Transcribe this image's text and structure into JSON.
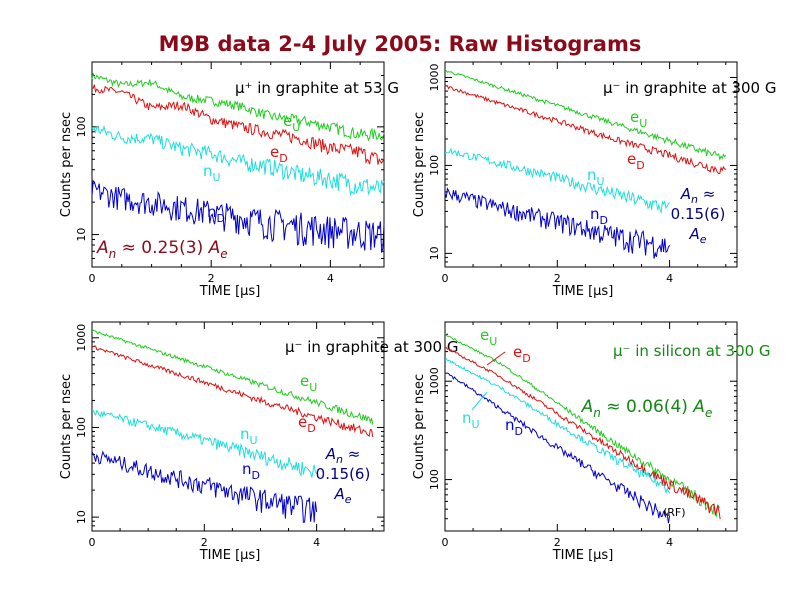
{
  "title": "M9B data 2-4 July 2005:  Raw Histograms",
  "colors": {
    "title": "#8b0a1a",
    "eU": "#22cc22",
    "eD": "#dd1111",
    "nU": "#22dddd",
    "nD": "#0000cc",
    "darkred": "#8b0a1a",
    "navy": "#000088",
    "green_title": "#118811"
  },
  "chart_data": [
    {
      "type": "line",
      "subtitle": "μ⁺ in graphite at 53 G",
      "xlabel": "TIME [μs]",
      "ylabel": "Counts per nsec",
      "x_ticks": [
        "0",
        "2",
        "4"
      ],
      "y_ticks": [
        "10",
        "100"
      ],
      "xlim": [
        0,
        4.9
      ],
      "ylog": [
        5,
        400
      ],
      "grid": false,
      "annotation": "An ≈ 0.25(3) Ae",
      "series": [
        {
          "name": "eU",
          "x": [
            0,
            0.5,
            1.0,
            1.5,
            2.0,
            2.5,
            3.0,
            3.5,
            4.0,
            4.5,
            4.9
          ],
          "values": [
            300,
            245,
            260,
            190,
            175,
            155,
            125,
            115,
            100,
            85,
            85
          ]
        },
        {
          "name": "eD",
          "x": [
            0,
            0.5,
            1.0,
            1.5,
            2.0,
            2.5,
            3.0,
            3.5,
            4.0,
            4.5,
            4.9
          ],
          "values": [
            230,
            210,
            150,
            160,
            118,
            100,
            88,
            78,
            64,
            58,
            47
          ]
        },
        {
          "name": "nU",
          "x": [
            0,
            0.5,
            1.0,
            1.5,
            2.0,
            2.5,
            3.0,
            3.5,
            4.0,
            4.5,
            4.9
          ],
          "values": [
            98,
            80,
            78,
            63,
            57,
            47,
            43,
            36,
            33,
            29,
            26
          ]
        },
        {
          "name": "nD",
          "x": [
            0,
            0.5,
            1.0,
            1.5,
            2.0,
            2.5,
            3.0,
            3.5,
            4.0,
            4.5,
            4.9
          ],
          "values": [
            26,
            22,
            20,
            18,
            16,
            14.5,
            13,
            12,
            11.2,
            10.5,
            10
          ]
        }
      ]
    },
    {
      "type": "line",
      "subtitle": "μ⁻ in graphite at 300 G",
      "xlabel": "TIME [μs]",
      "ylabel": "Counts per nsec",
      "x_ticks": [
        "0",
        "2",
        "4"
      ],
      "y_ticks": [
        "10",
        "100",
        "1000"
      ],
      "xlim": [
        0,
        5.2
      ],
      "ylog": [
        7,
        1500
      ],
      "grid": false,
      "annotation": "An ≈ 0.15(6) Ae",
      "series": [
        {
          "name": "eU",
          "x": [
            0,
            1,
            2,
            3,
            4,
            5
          ],
          "values": [
            1200,
            760,
            480,
            300,
            190,
            120
          ]
        },
        {
          "name": "eD",
          "x": [
            0,
            1,
            2,
            3,
            4,
            5
          ],
          "values": [
            800,
            500,
            320,
            200,
            130,
            85
          ]
        },
        {
          "name": "nU",
          "x": [
            0,
            1,
            2,
            3,
            4
          ],
          "values": [
            150,
            105,
            72,
            48,
            32
          ]
        },
        {
          "name": "nD",
          "x": [
            0,
            1,
            2,
            3,
            4
          ],
          "values": [
            50,
            33,
            23,
            16,
            12
          ]
        }
      ]
    },
    {
      "type": "line",
      "subtitle": "μ⁻ in graphite at 300 G",
      "xlabel": "TIME [μs]",
      "ylabel": "Counts per nsec",
      "x_ticks": [
        "0",
        "2",
        "4"
      ],
      "y_ticks": [
        "10",
        "100",
        "1000"
      ],
      "xlim": [
        0,
        5.2
      ],
      "ylog": [
        7,
        1500
      ],
      "grid": false,
      "annotation": "An ≈ 0.15(6) Ae",
      "series": [
        {
          "name": "eU",
          "x": [
            0,
            1,
            2,
            3,
            4,
            5
          ],
          "values": [
            1200,
            760,
            480,
            300,
            190,
            120
          ]
        },
        {
          "name": "eD",
          "x": [
            0,
            1,
            2,
            3,
            4,
            5
          ],
          "values": [
            800,
            500,
            320,
            200,
            130,
            85
          ]
        },
        {
          "name": "nU",
          "x": [
            0,
            1,
            2,
            3,
            4
          ],
          "values": [
            150,
            105,
            72,
            48,
            32
          ]
        },
        {
          "name": "nD",
          "x": [
            0,
            1,
            2,
            3,
            4
          ],
          "values": [
            50,
            33,
            23,
            16,
            12
          ]
        }
      ]
    },
    {
      "type": "line",
      "subtitle": "μ⁻ in silicon at 300 G",
      "xlabel": "TIME [μs]",
      "ylabel": "Counts per nsec",
      "x_ticks": [
        "0",
        "2",
        "4"
      ],
      "y_ticks": [
        "100",
        "1000"
      ],
      "xlim": [
        0,
        5.2
      ],
      "ylog": [
        30,
        4000
      ],
      "grid": false,
      "annotation": "An ≈ 0.06(4) Ae",
      "note": "(RF)",
      "series": [
        {
          "name": "eU",
          "x": [
            0,
            1,
            2,
            3,
            4,
            4.9
          ],
          "values": [
            3000,
            1500,
            600,
            240,
            100,
            47
          ]
        },
        {
          "name": "eD",
          "x": [
            0,
            1,
            2,
            3,
            4,
            4.9
          ],
          "values": [
            2200,
            1100,
            470,
            200,
            90,
            47
          ]
        },
        {
          "name": "nU",
          "x": [
            0,
            1,
            2,
            3,
            4
          ],
          "values": [
            1700,
            850,
            370,
            165,
            80
          ]
        },
        {
          "name": "nD",
          "x": [
            0,
            1,
            2,
            3,
            4
          ],
          "values": [
            1250,
            520,
            210,
            90,
            40
          ]
        }
      ]
    }
  ]
}
